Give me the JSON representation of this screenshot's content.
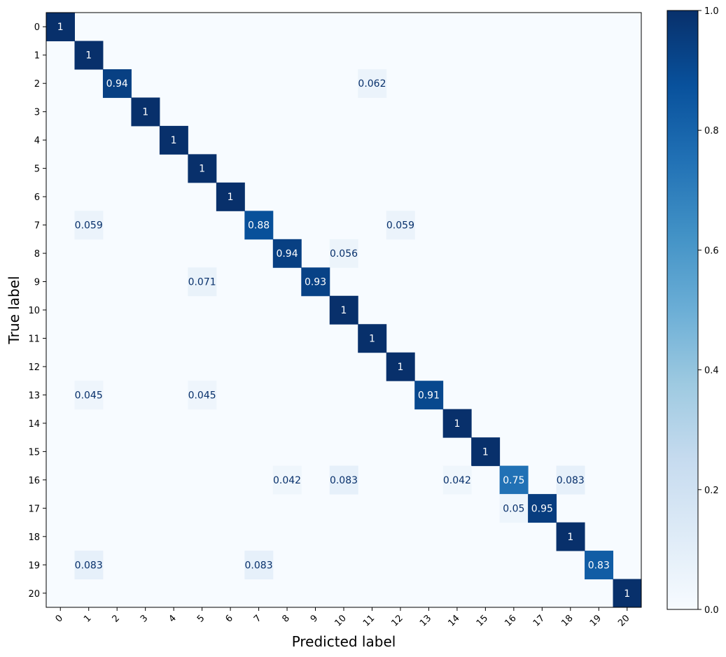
{
  "chart_data": {
    "type": "heatmap",
    "xlabel": "Predicted label",
    "ylabel": "True label",
    "categories": [
      "0",
      "1",
      "2",
      "3",
      "4",
      "5",
      "6",
      "7",
      "8",
      "9",
      "10",
      "11",
      "12",
      "13",
      "14",
      "15",
      "16",
      "17",
      "18",
      "19",
      "20"
    ],
    "cells": [
      {
        "row": 0,
        "col": 0,
        "value": 1,
        "label": "1"
      },
      {
        "row": 1,
        "col": 1,
        "value": 1,
        "label": "1"
      },
      {
        "row": 2,
        "col": 2,
        "value": 0.94,
        "label": "0.94"
      },
      {
        "row": 2,
        "col": 11,
        "value": 0.062,
        "label": "0.062"
      },
      {
        "row": 3,
        "col": 3,
        "value": 1,
        "label": "1"
      },
      {
        "row": 4,
        "col": 4,
        "value": 1,
        "label": "1"
      },
      {
        "row": 5,
        "col": 5,
        "value": 1,
        "label": "1"
      },
      {
        "row": 6,
        "col": 6,
        "value": 1,
        "label": "1"
      },
      {
        "row": 7,
        "col": 1,
        "value": 0.059,
        "label": "0.059"
      },
      {
        "row": 7,
        "col": 7,
        "value": 0.88,
        "label": "0.88"
      },
      {
        "row": 7,
        "col": 12,
        "value": 0.059,
        "label": "0.059"
      },
      {
        "row": 8,
        "col": 8,
        "value": 0.94,
        "label": "0.94"
      },
      {
        "row": 8,
        "col": 10,
        "value": 0.056,
        "label": "0.056"
      },
      {
        "row": 9,
        "col": 5,
        "value": 0.071,
        "label": "0.071"
      },
      {
        "row": 9,
        "col": 9,
        "value": 0.93,
        "label": "0.93"
      },
      {
        "row": 10,
        "col": 10,
        "value": 1,
        "label": "1"
      },
      {
        "row": 11,
        "col": 11,
        "value": 1,
        "label": "1"
      },
      {
        "row": 12,
        "col": 12,
        "value": 1,
        "label": "1"
      },
      {
        "row": 13,
        "col": 1,
        "value": 0.045,
        "label": "0.045"
      },
      {
        "row": 13,
        "col": 5,
        "value": 0.045,
        "label": "0.045"
      },
      {
        "row": 13,
        "col": 13,
        "value": 0.91,
        "label": "0.91"
      },
      {
        "row": 14,
        "col": 14,
        "value": 1,
        "label": "1"
      },
      {
        "row": 15,
        "col": 15,
        "value": 1,
        "label": "1"
      },
      {
        "row": 16,
        "col": 8,
        "value": 0.042,
        "label": "0.042"
      },
      {
        "row": 16,
        "col": 10,
        "value": 0.083,
        "label": "0.083"
      },
      {
        "row": 16,
        "col": 14,
        "value": 0.042,
        "label": "0.042"
      },
      {
        "row": 16,
        "col": 16,
        "value": 0.75,
        "label": "0.75"
      },
      {
        "row": 16,
        "col": 18,
        "value": 0.083,
        "label": "0.083"
      },
      {
        "row": 17,
        "col": 16,
        "value": 0.05,
        "label": "0.05"
      },
      {
        "row": 17,
        "col": 17,
        "value": 0.95,
        "label": "0.95"
      },
      {
        "row": 18,
        "col": 18,
        "value": 1,
        "label": "1"
      },
      {
        "row": 19,
        "col": 1,
        "value": 0.083,
        "label": "0.083"
      },
      {
        "row": 19,
        "col": 7,
        "value": 0.083,
        "label": "0.083"
      },
      {
        "row": 19,
        "col": 19,
        "value": 0.83,
        "label": "0.83"
      },
      {
        "row": 20,
        "col": 20,
        "value": 1,
        "label": "1"
      }
    ],
    "value_range": [
      0,
      1
    ],
    "colormap": "Blues",
    "colormap_stops": [
      "#f7fbff",
      "#deebf7",
      "#c6dbef",
      "#9ecae1",
      "#6baed6",
      "#4292c6",
      "#2171b5",
      "#08519c",
      "#08306b"
    ],
    "colorbar_ticks": [
      "0.0",
      "0.2",
      "0.4",
      "0.6",
      "0.8",
      "1.0"
    ],
    "colorbar_tick_values": [
      0,
      0.2,
      0.4,
      0.6,
      0.8,
      1.0
    ],
    "grid": false,
    "colorbar_position": "right"
  }
}
